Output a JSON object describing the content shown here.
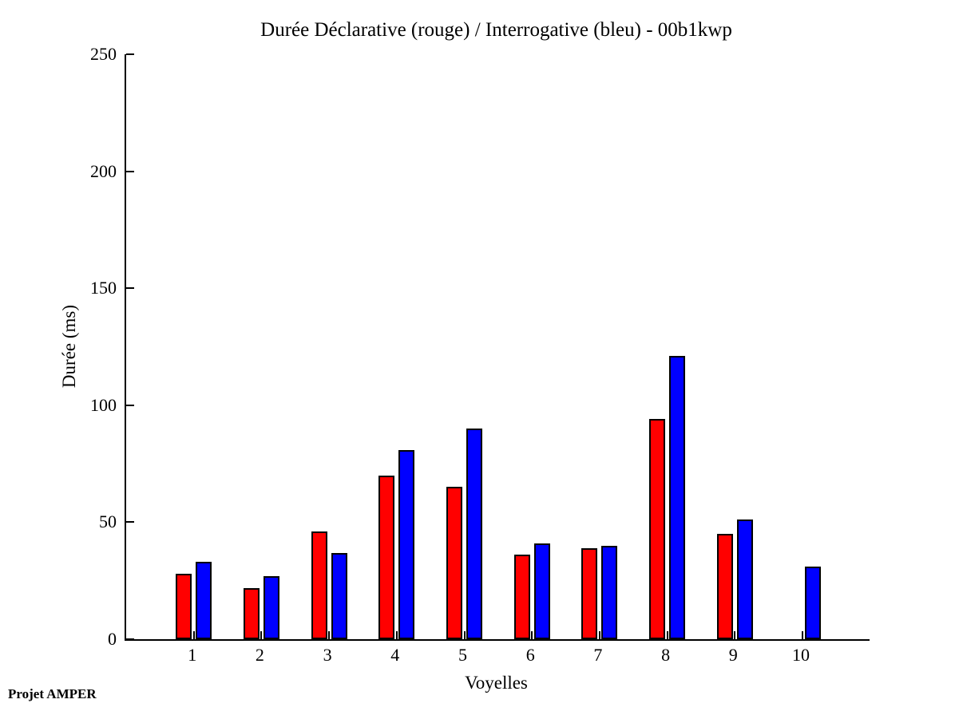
{
  "figure": {
    "footer": "Projet AMPER",
    "background_color": "#ffffff",
    "axis_color": "#000000"
  },
  "chart_data": {
    "type": "bar",
    "title": "Durée Déclarative (rouge) / Interrogative (bleu) - 00b1kwp",
    "xlabel": "Voyelles",
    "ylabel": "Durée (ms)",
    "categories": [
      "1",
      "2",
      "3",
      "4",
      "5",
      "6",
      "7",
      "8",
      "9",
      "10"
    ],
    "series": [
      {
        "name": "Déclarative",
        "color": "#ff0000",
        "values": [
          28,
          22,
          46,
          70,
          65,
          36,
          39,
          94,
          45,
          0
        ]
      },
      {
        "name": "Interrogative",
        "color": "#0000ff",
        "values": [
          33,
          27,
          37,
          81,
          90,
          41,
          40,
          121,
          51,
          31
        ]
      }
    ],
    "ylim": [
      0,
      250
    ],
    "yticks": [
      0,
      50,
      100,
      150,
      200,
      250
    ],
    "grid": false,
    "legend_position": "none",
    "bar_edge_color": "#000000"
  }
}
